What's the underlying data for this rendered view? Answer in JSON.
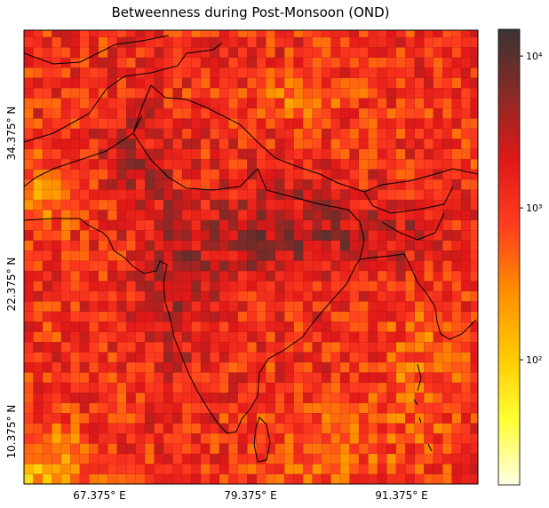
{
  "chart_data": {
    "type": "heatmap",
    "title": "Betweenness during Post-Monsoon (OND)",
    "xlabel": "",
    "ylabel": "",
    "grid": true,
    "x_ticks": [
      "67.375° E",
      "79.375° E",
      "91.375° E"
    ],
    "y_ticks": [
      "34.375° N",
      "22.375° N",
      "10.375° N"
    ],
    "lon_range": [
      61.0,
      97.6
    ],
    "lat_range": [
      6.6,
      40.1
    ],
    "cell_size_deg": 0.75,
    "colorbar": {
      "scale": "log",
      "range": [
        15,
        15000
      ],
      "tick_values": [
        100,
        1000,
        10000
      ],
      "tick_labels": [
        "10²",
        "10³",
        "10⁴"
      ],
      "colormap": [
        "#ffffe6",
        "#ffff33",
        "#ffc800",
        "#ff8c00",
        "#ff3c20",
        "#e01818",
        "#8a2a26",
        "#3a3434"
      ]
    },
    "value_pattern": "high betweenness (~3×10³–10⁴) along the Himalaya, Ganges plain and central/western India; lower values (10²–10³) over Tibetan plateau patches, the Arabian Sea edge and the southwest corner"
  }
}
